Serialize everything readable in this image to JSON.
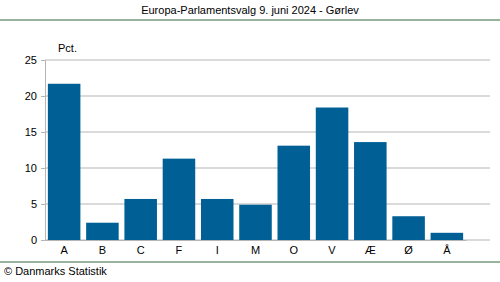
{
  "chart_data": {
    "type": "bar",
    "title": "Europa-Parlamentsvalg 9. juni 2024 - Gørlev",
    "y_label": "Pct.",
    "source": "© Danmarks Statistik",
    "categories": [
      "A",
      "B",
      "C",
      "F",
      "I",
      "M",
      "O",
      "V",
      "Æ",
      "Ø",
      "Å"
    ],
    "values": [
      21.7,
      2.4,
      5.7,
      11.3,
      5.7,
      4.9,
      13.1,
      18.4,
      13.6,
      3.3,
      1.0
    ],
    "color": "#005f94",
    "ylim": [
      0,
      25
    ],
    "yticks": [
      0,
      5,
      10,
      15,
      20,
      25
    ],
    "grid": true
  }
}
